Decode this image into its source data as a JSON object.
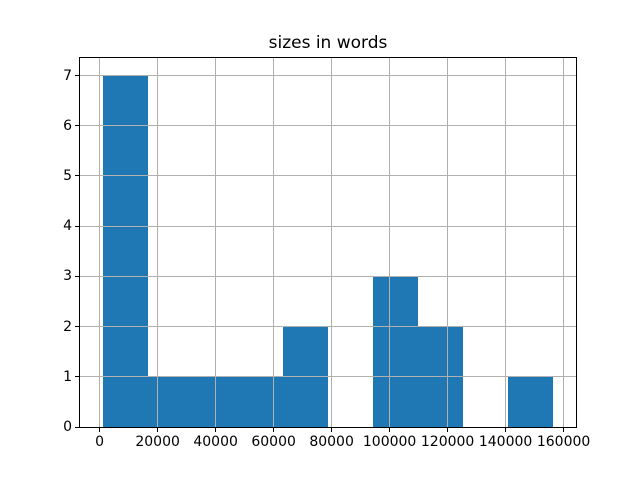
{
  "title": "sizes in words",
  "chart_data": {
    "type": "histogram",
    "title": "sizes in words",
    "xlabel": "",
    "ylabel": "",
    "bar_color": "#1f77b4",
    "grid_color": "#b0b0b0",
    "grid": true,
    "grid_above_bars": true,
    "background_color": "#ffffff",
    "bin_edges": [
      1000,
      16550,
      32100,
      47650,
      63200,
      78750,
      94300,
      109850,
      125400,
      140950,
      156500
    ],
    "counts": [
      7,
      1,
      1,
      1,
      2,
      0,
      3,
      2,
      0,
      1
    ],
    "total_count": 18,
    "xlim": [
      -6775,
      164275
    ],
    "ylim": [
      0,
      7.35
    ],
    "x_ticks": [
      0,
      20000,
      40000,
      60000,
      80000,
      100000,
      120000,
      140000,
      160000
    ],
    "x_tick_labels": [
      "0",
      "20000",
      "40000",
      "60000",
      "80000",
      "100000",
      "120000",
      "140000",
      "160000"
    ],
    "y_ticks": [
      0,
      1,
      2,
      3,
      4,
      5,
      6,
      7
    ],
    "y_tick_labels": [
      "0",
      "1",
      "2",
      "3",
      "4",
      "5",
      "6",
      "7"
    ]
  }
}
